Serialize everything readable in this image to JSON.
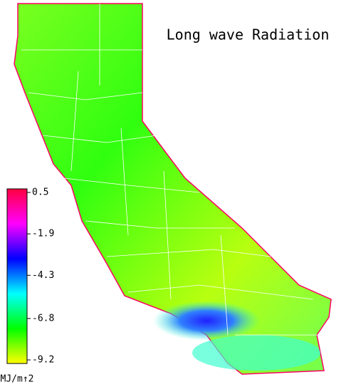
{
  "map": {
    "title": "Long wave Radiation",
    "colorbar": {
      "lim": [
        -9.2,
        0.5
      ],
      "ticks": [
        0.5,
        -1.9,
        -4.3,
        -6.8,
        -9.2
      ],
      "colors": [
        "#ffff00",
        "#00ff00",
        "#00ffff",
        "#0000ff",
        "#ff00ff",
        "#ff0040"
      ],
      "unit": "MJ/m↑2"
    }
  }
}
